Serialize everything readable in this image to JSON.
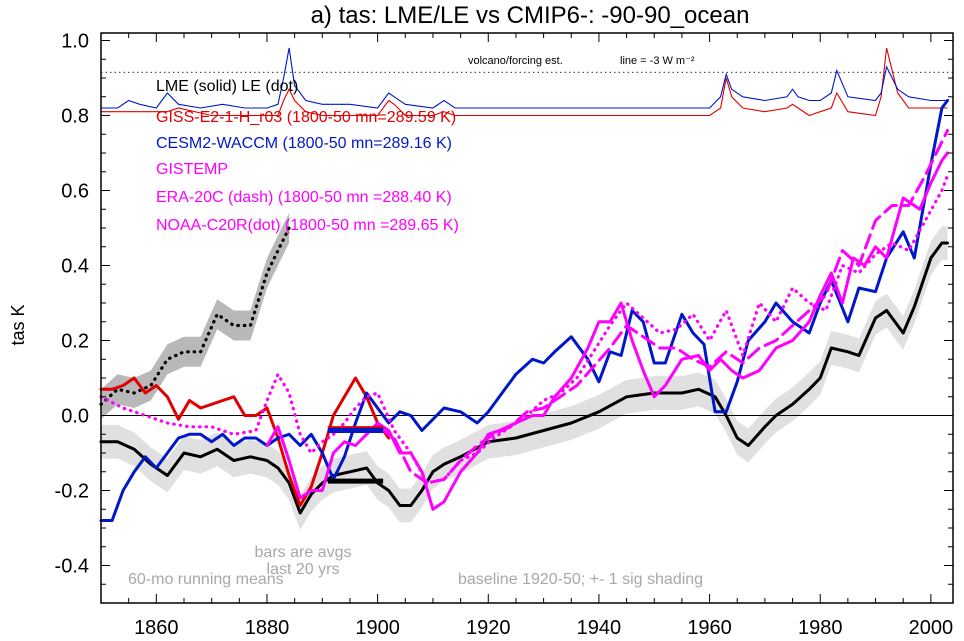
{
  "colors": {
    "lme": "#000000",
    "giss": "#e00000",
    "cesm": "#0018c8",
    "obs": "#ff00ff",
    "shade_lme": "#e0e0e0",
    "shade_le": "#b8b8b8",
    "note": "#a8a8a8"
  },
  "chart_data": {
    "type": "line",
    "title": "a) tas: LME/LE vs CMIP6-: -90-90_ocean",
    "ylabel": "tas K",
    "xlabel": "",
    "xlim": [
      1850,
      2004
    ],
    "ylim": [
      -0.5,
      1.02
    ],
    "xticks": [
      1860,
      1880,
      1900,
      1920,
      1940,
      1960,
      1980,
      2000
    ],
    "xtick_labels": [
      "1860",
      "1880",
      "1900",
      "1920",
      "1940",
      "1960",
      "1980",
      "2000"
    ],
    "yticks": [
      -0.4,
      -0.2,
      0.0,
      0.2,
      0.4,
      0.6,
      0.8,
      1.0
    ],
    "ytick_labels": [
      "-0.4",
      "-0.2",
      "0.0",
      "0.2",
      "0.4",
      "0.6",
      "0.8",
      "1.0"
    ],
    "grid": false,
    "zero_line": 0,
    "legend": [
      {
        "text": "LME (solid)   LE (dot)",
        "color": "#000000"
      },
      {
        "text": "GISS-E2-1-H_r03 (1800-50 mn=289.59 K)",
        "color": "#e00000"
      },
      {
        "text": "CESM2-WACCM (1800-50 mn=289.16 K)",
        "color": "#0018c8"
      },
      {
        "text": "GISTEMP",
        "color": "#ff00ff"
      },
      {
        "text": "ERA-20C (dash) (1800-50 mn =288.40 K)",
        "color": "#ff00ff"
      },
      {
        "text": "NOAA-C20R(dot) (1800-50 mn =289.65 K)",
        "color": "#ff00ff"
      }
    ],
    "annotations": {
      "volcano": "volcano/forcing est.",
      "line_ref": "line = -3 W m⁻²",
      "running": "60-mo running means",
      "bars1": "bars are avgs",
      "bars2": "last 20 yrs",
      "baseline": "baseline 1920-50; +- 1 sig shading"
    },
    "forcing_ref_y": 0.915,
    "series": [
      {
        "name": "LME (solid)",
        "style": "solid",
        "color": "#000000",
        "x": [
          1850,
          1853,
          1856,
          1859,
          1862,
          1865,
          1868,
          1871,
          1874,
          1877,
          1880,
          1882,
          1884,
          1886,
          1888,
          1890,
          1892,
          1895,
          1898,
          1900,
          1902,
          1904,
          1906,
          1908,
          1910,
          1912,
          1915,
          1920,
          1925,
          1930,
          1935,
          1940,
          1945,
          1950,
          1955,
          1958,
          1961,
          1963,
          1965,
          1967,
          1970,
          1972,
          1975,
          1978,
          1980,
          1982,
          1985,
          1987,
          1990,
          1992,
          1995,
          1997,
          2000,
          2002,
          2003
        ],
        "y": [
          -0.07,
          -0.07,
          -0.09,
          -0.13,
          -0.16,
          -0.1,
          -0.11,
          -0.09,
          -0.12,
          -0.11,
          -0.12,
          -0.14,
          -0.18,
          -0.26,
          -0.21,
          -0.18,
          -0.16,
          -0.15,
          -0.14,
          -0.18,
          -0.2,
          -0.24,
          -0.24,
          -0.2,
          -0.15,
          -0.13,
          -0.11,
          -0.07,
          -0.06,
          -0.04,
          -0.02,
          0.01,
          0.05,
          0.06,
          0.06,
          0.07,
          0.05,
          0.0,
          -0.06,
          -0.08,
          -0.03,
          0.0,
          0.03,
          0.07,
          0.1,
          0.18,
          0.17,
          0.16,
          0.26,
          0.28,
          0.22,
          0.29,
          0.42,
          0.46,
          0.46
        ]
      },
      {
        "name": "LE (dot)",
        "style": "dot",
        "color": "#000000",
        "x": [
          1850,
          1853,
          1856,
          1859,
          1862,
          1865,
          1868,
          1871,
          1874,
          1877,
          1880,
          1882,
          1884
        ],
        "y": [
          0.03,
          0.07,
          0.06,
          0.08,
          0.15,
          0.17,
          0.17,
          0.27,
          0.24,
          0.24,
          0.38,
          0.44,
          0.5
        ]
      },
      {
        "name": "GISS-E2-1-H_r03",
        "style": "solid",
        "color": "#e00000",
        "x": [
          1850,
          1852,
          1854,
          1856,
          1858,
          1860,
          1862,
          1864,
          1866,
          1868,
          1870,
          1872,
          1874,
          1876,
          1878,
          1880,
          1882,
          1884,
          1886,
          1888,
          1890,
          1892,
          1894,
          1896,
          1898,
          1900,
          1902
        ],
        "y": [
          0.07,
          0.07,
          0.08,
          0.1,
          0.06,
          0.08,
          0.05,
          -0.01,
          0.04,
          0.02,
          0.03,
          0.04,
          0.05,
          0.0,
          0.0,
          0.02,
          -0.06,
          -0.16,
          -0.24,
          -0.19,
          -0.1,
          0.0,
          0.05,
          0.1,
          0.05,
          -0.02,
          -0.06
        ]
      },
      {
        "name": "CESM2-WACCM",
        "style": "solid",
        "color": "#0018c8",
        "x": [
          1850,
          1852,
          1854,
          1856,
          1858,
          1860,
          1862,
          1864,
          1866,
          1868,
          1870,
          1872,
          1874,
          1876,
          1878,
          1880,
          1882,
          1884,
          1886,
          1888,
          1890,
          1892,
          1894,
          1896,
          1898,
          1900,
          1902,
          1904,
          1906,
          1908,
          1910,
          1912,
          1915,
          1918,
          1920,
          1922,
          1925,
          1928,
          1930,
          1932,
          1935,
          1938,
          1940,
          1942,
          1944,
          1946,
          1948,
          1950,
          1952,
          1955,
          1957,
          1959,
          1961,
          1963,
          1965,
          1967,
          1970,
          1972,
          1975,
          1978,
          1980,
          1982,
          1985,
          1987,
          1990,
          1992,
          1995,
          1997,
          2000,
          2002,
          2003
        ],
        "y": [
          -0.28,
          -0.28,
          -0.2,
          -0.15,
          -0.11,
          -0.14,
          -0.1,
          -0.06,
          -0.05,
          -0.05,
          -0.07,
          -0.05,
          -0.08,
          -0.06,
          -0.06,
          -0.08,
          -0.06,
          -0.05,
          -0.08,
          -0.05,
          -0.1,
          -0.17,
          -0.11,
          -0.02,
          0.06,
          0.02,
          -0.02,
          0.01,
          0.0,
          -0.04,
          -0.01,
          0.02,
          0.01,
          -0.02,
          0.01,
          0.05,
          0.11,
          0.15,
          0.14,
          0.17,
          0.21,
          0.15,
          0.09,
          0.17,
          0.16,
          0.28,
          0.25,
          0.14,
          0.14,
          0.27,
          0.22,
          0.19,
          0.01,
          0.01,
          0.09,
          0.2,
          0.25,
          0.3,
          0.25,
          0.22,
          0.3,
          0.36,
          0.25,
          0.34,
          0.33,
          0.42,
          0.49,
          0.42,
          0.67,
          0.82,
          0.84
        ]
      },
      {
        "name": "GISTEMP",
        "style": "solid",
        "color": "#ff00ff",
        "x": [
          1880,
          1882,
          1884,
          1886,
          1888,
          1890,
          1892,
          1894,
          1896,
          1898,
          1900,
          1902,
          1904,
          1906,
          1908,
          1910,
          1912,
          1915,
          1918,
          1920,
          1922,
          1925,
          1928,
          1930,
          1932,
          1935,
          1938,
          1940,
          1942,
          1944,
          1946,
          1948,
          1950,
          1952,
          1955,
          1958,
          1960,
          1962,
          1964,
          1966,
          1969,
          1972,
          1975,
          1978,
          1980,
          1982,
          1984,
          1986,
          1988,
          1990,
          1992,
          1995,
          1998,
          2000,
          2002,
          2003
        ],
        "y": [
          -0.08,
          -0.03,
          -0.12,
          -0.22,
          -0.2,
          -0.2,
          -0.1,
          -0.07,
          -0.08,
          -0.05,
          -0.02,
          -0.04,
          -0.1,
          -0.1,
          -0.15,
          -0.25,
          -0.23,
          -0.15,
          -0.1,
          -0.05,
          -0.04,
          -0.02,
          0.0,
          0.0,
          0.05,
          0.1,
          0.18,
          0.25,
          0.25,
          0.3,
          0.2,
          0.12,
          0.05,
          0.08,
          0.15,
          0.16,
          0.12,
          0.15,
          0.12,
          0.1,
          0.12,
          0.18,
          0.2,
          0.25,
          0.32,
          0.38,
          0.3,
          0.42,
          0.4,
          0.45,
          0.42,
          0.58,
          0.55,
          0.62,
          0.68,
          0.7
        ]
      },
      {
        "name": "ERA-20C (dash)",
        "style": "dash",
        "color": "#ff00ff",
        "x": [
          1900,
          1903,
          1906,
          1909,
          1912,
          1915,
          1918,
          1921,
          1924,
          1927,
          1930,
          1933,
          1936,
          1939,
          1942,
          1945,
          1948,
          1951,
          1954,
          1957,
          1960,
          1963,
          1966,
          1969,
          1972,
          1975,
          1978,
          1981,
          1984,
          1987,
          1990,
          1993,
          1996,
          1999,
          2002,
          2003
        ],
        "y": [
          -0.03,
          -0.06,
          -0.15,
          -0.18,
          -0.17,
          -0.12,
          -0.08,
          -0.05,
          -0.03,
          0.01,
          0.02,
          0.05,
          0.08,
          0.13,
          0.18,
          0.24,
          0.21,
          0.18,
          0.18,
          0.15,
          0.13,
          0.17,
          0.14,
          0.18,
          0.2,
          0.24,
          0.28,
          0.32,
          0.44,
          0.4,
          0.52,
          0.56,
          0.56,
          0.64,
          0.73,
          0.76
        ]
      },
      {
        "name": "NOAA-C20R(dot)",
        "style": "dot",
        "color": "#ff00ff",
        "x": [
          1850,
          1854,
          1858,
          1862,
          1866,
          1870,
          1874,
          1878,
          1880,
          1882,
          1884,
          1886,
          1888,
          1890,
          1892,
          1894,
          1896,
          1898,
          1900,
          1903,
          1906,
          1909,
          1912,
          1915,
          1918,
          1921,
          1924,
          1927,
          1930,
          1933,
          1936,
          1939,
          1942,
          1945,
          1948,
          1951,
          1954,
          1957,
          1960,
          1963,
          1966,
          1969,
          1972,
          1975,
          1978,
          1981,
          1984,
          1987,
          1990,
          1993,
          1996,
          1999,
          2002,
          2003
        ],
        "y": [
          0.05,
          0.02,
          0.0,
          -0.02,
          -0.03,
          -0.03,
          -0.05,
          -0.04,
          0.04,
          0.11,
          0.06,
          -0.05,
          -0.1,
          -0.07,
          -0.05,
          -0.02,
          0.02,
          0.05,
          0.06,
          -0.04,
          -0.1,
          -0.18,
          -0.17,
          -0.12,
          -0.1,
          -0.06,
          -0.03,
          0.0,
          0.04,
          0.06,
          0.1,
          0.17,
          0.24,
          0.3,
          0.26,
          0.22,
          0.23,
          0.27,
          0.2,
          0.28,
          0.16,
          0.3,
          0.25,
          0.34,
          0.3,
          0.28,
          0.4,
          0.38,
          0.43,
          0.46,
          0.44,
          0.52,
          0.6,
          0.64
        ]
      }
    ],
    "bands": [
      {
        "name": "LME +- 1 sig",
        "color": "#e0e0e0",
        "x": [
          1850,
          1853,
          1856,
          1859,
          1862,
          1865,
          1868,
          1871,
          1874,
          1877,
          1880,
          1882,
          1884,
          1886,
          1888,
          1890,
          1892,
          1895,
          1898,
          1900,
          1902,
          1904,
          1906,
          1908,
          1910,
          1912,
          1915,
          1920,
          1925,
          1930,
          1935,
          1940,
          1945,
          1950,
          1955,
          1958,
          1961,
          1963,
          1965,
          1967,
          1970,
          1972,
          1975,
          1978,
          1980,
          1982,
          1985,
          1987,
          1990,
          1992,
          1995,
          1997,
          2000,
          2002,
          2003
        ],
        "y": [
          -0.07,
          -0.07,
          -0.09,
          -0.13,
          -0.16,
          -0.1,
          -0.11,
          -0.09,
          -0.12,
          -0.11,
          -0.12,
          -0.14,
          -0.18,
          -0.26,
          -0.21,
          -0.18,
          -0.16,
          -0.15,
          -0.14,
          -0.18,
          -0.2,
          -0.24,
          -0.24,
          -0.2,
          -0.15,
          -0.13,
          -0.11,
          -0.07,
          -0.06,
          -0.04,
          -0.02,
          0.01,
          0.05,
          0.06,
          0.06,
          0.07,
          0.05,
          0.0,
          -0.06,
          -0.08,
          -0.03,
          0.0,
          0.03,
          0.07,
          0.1,
          0.18,
          0.17,
          0.16,
          0.26,
          0.28,
          0.22,
          0.29,
          0.42,
          0.46,
          0.46
        ],
        "half_width": 0.045
      },
      {
        "name": "LE +- 1 sig",
        "color": "#b8b8b8",
        "x": [
          1850,
          1853,
          1856,
          1859,
          1862,
          1865,
          1868,
          1871,
          1874,
          1877,
          1880,
          1882,
          1884
        ],
        "y": [
          0.03,
          0.07,
          0.06,
          0.08,
          0.15,
          0.17,
          0.17,
          0.27,
          0.24,
          0.24,
          0.38,
          0.44,
          0.5
        ],
        "half_width": 0.04
      }
    ],
    "avg_bars": [
      {
        "name": "GISS avg last 20 yrs",
        "color": "#e00000",
        "x": [
          1891,
          1901
        ],
        "y": -0.035
      },
      {
        "name": "CESM avg last 20 yrs",
        "color": "#0018c8",
        "x": [
          1891,
          1901
        ],
        "y": -0.04
      },
      {
        "name": "LME avg last 20 yrs",
        "color": "#000000",
        "x": [
          1891,
          1901
        ],
        "y": -0.175
      }
    ],
    "forcing": [
      {
        "name": "volcano/forcing est. (red)",
        "color": "#e00000",
        "x": [
          1850,
          1855,
          1860,
          1862,
          1864,
          1870,
          1875,
          1880,
          1882,
          1883,
          1884,
          1885,
          1887,
          1890,
          1900,
          1902,
          1903,
          1905,
          1910,
          1912,
          1914,
          1920,
          1930,
          1940,
          1950,
          1960,
          1962,
          1963,
          1964,
          1966,
          1970,
          1974,
          1975,
          1976,
          1978,
          1980,
          1982,
          1983,
          1985,
          1990,
          1991,
          1992,
          1994,
          1996,
          2000,
          2003
        ],
        "y": [
          0.81,
          0.81,
          0.81,
          0.81,
          0.82,
          0.8,
          0.8,
          0.8,
          0.8,
          0.84,
          0.87,
          0.84,
          0.81,
          0.8,
          0.8,
          0.84,
          0.83,
          0.8,
          0.8,
          0.81,
          0.8,
          0.8,
          0.8,
          0.8,
          0.8,
          0.8,
          0.82,
          0.9,
          0.85,
          0.82,
          0.81,
          0.82,
          0.83,
          0.82,
          0.8,
          0.81,
          0.82,
          0.86,
          0.81,
          0.8,
          0.85,
          0.98,
          0.86,
          0.82,
          0.82,
          0.82
        ]
      },
      {
        "name": "volcano/forcing est. (blue)",
        "color": "#0018c8",
        "x": [
          1850,
          1853,
          1855,
          1857,
          1860,
          1862,
          1864,
          1868,
          1872,
          1876,
          1880,
          1882,
          1883,
          1884,
          1885,
          1887,
          1890,
          1895,
          1900,
          1902,
          1903,
          1905,
          1910,
          1912,
          1914,
          1920,
          1930,
          1940,
          1950,
          1955,
          1960,
          1962,
          1963,
          1964,
          1966,
          1970,
          1974,
          1975,
          1976,
          1978,
          1980,
          1982,
          1983,
          1985,
          1990,
          1991,
          1992,
          1994,
          1996,
          2000,
          2003
        ],
        "y": [
          0.82,
          0.82,
          0.84,
          0.83,
          0.82,
          0.86,
          0.83,
          0.82,
          0.83,
          0.82,
          0.82,
          0.83,
          0.9,
          0.98,
          0.88,
          0.84,
          0.83,
          0.83,
          0.82,
          0.86,
          0.85,
          0.83,
          0.82,
          0.84,
          0.82,
          0.82,
          0.82,
          0.82,
          0.82,
          0.82,
          0.82,
          0.85,
          0.91,
          0.87,
          0.85,
          0.84,
          0.85,
          0.87,
          0.85,
          0.84,
          0.84,
          0.86,
          0.92,
          0.85,
          0.84,
          0.86,
          0.93,
          0.87,
          0.85,
          0.84,
          0.84
        ]
      }
    ]
  }
}
